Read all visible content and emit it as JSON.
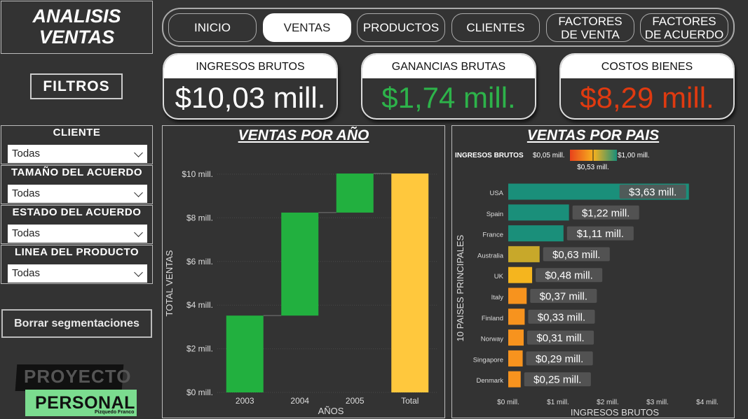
{
  "header": {
    "title_line1": "ANALISIS",
    "title_line2": "VENTAS"
  },
  "filters_label": "FILTROS",
  "slicers": [
    {
      "label": "CLIENTE",
      "value": "Todas"
    },
    {
      "label": "TAMAÑO DEL ACUERDO",
      "value": "Todas"
    },
    {
      "label": "ESTADO DEL ACUERDO",
      "value": "Todas"
    },
    {
      "label": "LINEA DEL PRODUCTO",
      "value": "Todas"
    }
  ],
  "clear_button": "Borrar segmentaciones",
  "logo": {
    "top": "PROYECTO",
    "bottom": "PERSONAL",
    "signature": "Pizquedo Franco"
  },
  "nav": [
    {
      "label": "INICIO",
      "active": false
    },
    {
      "label": "VENTAS",
      "active": true
    },
    {
      "label": "PRODUCTOS",
      "active": false
    },
    {
      "label": "CLIENTES",
      "active": false
    },
    {
      "label": "FACTORES DE VENTA",
      "active": false
    },
    {
      "label": "FACTORES DE ACUERDO",
      "active": false
    }
  ],
  "kpis": [
    {
      "label": "INGRESOS BRUTOS",
      "value": "$10,03 mill.",
      "color": "#ffffff"
    },
    {
      "label": "GANANCIAS BRUTAS",
      "value": "$1,74 mill.",
      "color": "#2db34a"
    },
    {
      "label": "COSTOS BIENES",
      "value": "$8,29 mill.",
      "color": "#e03a10"
    }
  ],
  "colors": {
    "background": "#333333",
    "green": "#22b03f",
    "total": "#ffc83d",
    "teal": "#1a8f7a",
    "orange": "#f7931e"
  },
  "chart_data": [
    {
      "type": "bar",
      "subtype": "waterfall",
      "title": "VENTAS POR AÑO",
      "xlabel": "AÑOS",
      "ylabel": "TOTAL VENTAS",
      "categories": [
        "2003",
        "2004",
        "2005",
        "Total"
      ],
      "increments": [
        3.52,
        4.72,
        1.79,
        10.03
      ],
      "tick_labels": [
        "$0 mill.",
        "$2 mill.",
        "$4 mill.",
        "$6 mill.",
        "$8 mill.",
        "$10 mill."
      ],
      "ylim": [
        0,
        10.8
      ],
      "grid": true
    },
    {
      "type": "bar",
      "orientation": "horizontal",
      "title": "VENTAS POR PAIS",
      "xlabel": "INGRESOS BRUTOS",
      "ylabel": "10 PAISES PRINCIPALES",
      "categories": [
        "USA",
        "Spain",
        "France",
        "Australia",
        "UK",
        "Italy",
        "Finland",
        "Norway",
        "Singapore",
        "Denmark"
      ],
      "values": [
        3.63,
        1.22,
        1.11,
        0.63,
        0.48,
        0.37,
        0.33,
        0.31,
        0.29,
        0.25
      ],
      "value_labels": [
        "$3,63 mill.",
        "$1,22 mill.",
        "$1,11 mill.",
        "$0,63 mill.",
        "$0,48 mill.",
        "$0,37 mill.",
        "$0,33 mill.",
        "$0,31 mill.",
        "$0,29 mill.",
        "$0,25 mill."
      ],
      "tick_labels": [
        "$0 mill.",
        "$1 mill.",
        "$2 mill.",
        "$3 mill.",
        "$4 mill."
      ],
      "xlim": [
        0,
        4.2
      ],
      "legend": {
        "title": "INGRESOS BRUTOS",
        "min": "$0,05 mill.",
        "mid": "$0,53 mill.",
        "max": "$1,00 mill."
      }
    }
  ]
}
